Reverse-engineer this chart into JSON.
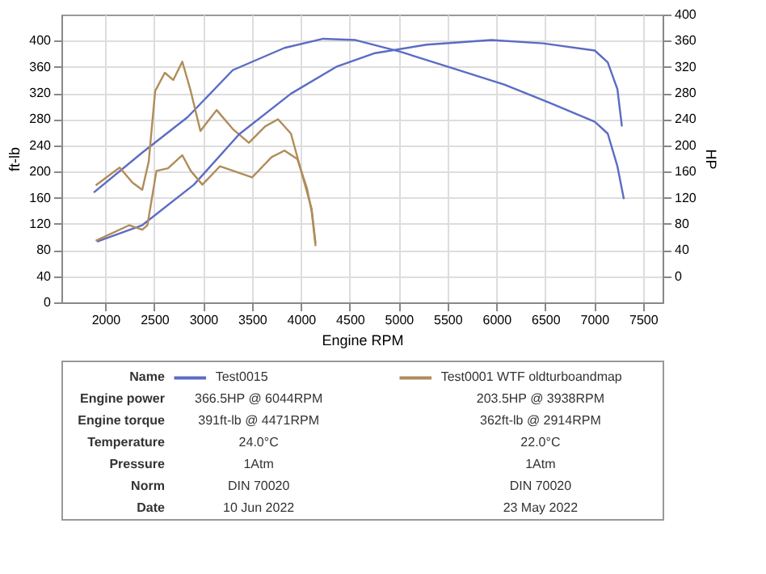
{
  "chart_data": {
    "type": "line",
    "xlabel": "Engine RPM",
    "ylabel": "ft-lb",
    "y2label": "HP",
    "xlim": [
      1550,
      7700
    ],
    "xticks": [
      2000,
      2500,
      3000,
      3500,
      4000,
      4500,
      5000,
      5500,
      6000,
      6500,
      7000,
      7500
    ],
    "ylim": [
      0,
      440
    ],
    "yticks": [
      0,
      40,
      80,
      120,
      160,
      200,
      240,
      280,
      320,
      360,
      400
    ],
    "y2lim": [
      -40,
      400
    ],
    "y2ticks": [
      0,
      40,
      80,
      120,
      160,
      200,
      240,
      280,
      320,
      360,
      400
    ],
    "grid": true,
    "legend": "bottom",
    "series": [
      {
        "name": "Test0015",
        "color": "#5b6cc4",
        "x": [
          1881,
          2377,
          2840,
          3303,
          3832,
          4229,
          4560,
          5022,
          5552,
          6081,
          6544,
          7007,
          7139,
          7238,
          7304
        ],
        "values": [
          168,
          229,
          283,
          355,
          389,
          403,
          401,
          383,
          358,
          333,
          305,
          276,
          258,
          208,
          158
        ]
      },
      {
        "color": "#5b6cc4",
        "axis": "y2",
        "x": [
          1914,
          2377,
          2906,
          3369,
          3898,
          4361,
          4758,
          5287,
          5948,
          6478,
          7007,
          7139,
          7238,
          7284
        ],
        "values": [
          53,
          78,
          140,
          217,
          279,
          320,
          341,
          354,
          361,
          356,
          345,
          327,
          286,
          229
        ]
      },
      {
        "name": "Test0001 WTF oldturboandmap",
        "color": "#b08c5a",
        "x": [
          1901,
          2146,
          2278,
          2377,
          2443,
          2509,
          2608,
          2694,
          2787,
          2873,
          2972,
          3138,
          3303,
          3468,
          3634,
          3766,
          3898,
          4030,
          4110,
          4150
        ],
        "values": [
          179,
          206,
          183,
          172,
          215,
          323,
          351,
          340,
          368,
          323,
          262,
          294,
          265,
          244,
          269,
          280,
          258,
          186,
          143,
          90
        ]
      },
      {
        "color": "#b08c5a",
        "axis": "y2",
        "x": [
          1901,
          2245,
          2377,
          2430,
          2522,
          2641,
          2787,
          2873,
          2992,
          3171,
          3501,
          3700,
          3832,
          3964,
          4063,
          4110,
          4150
        ],
        "values": [
          54,
          78,
          71,
          78,
          161,
          165,
          185,
          161,
          140,
          168,
          151,
          182,
          192,
          179,
          134,
          99,
          46
        ]
      }
    ],
    "annotations": [
      "Name",
      "Engine power",
      "Engine torque",
      "Temperature",
      "Pressure",
      "Norm",
      "Date",
      "366.5HP @  6044RPM",
      "391ft-lb @ 4471RPM",
      "24.0°C",
      "1Atm",
      "DIN 70020",
      "10 Jun 2022",
      "203.5HP @  3938RPM",
      "362ft-lb @ 2914RPM",
      "22.0°C",
      "1Atm",
      "DIN 70020",
      "23 May 2022"
    ]
  }
}
